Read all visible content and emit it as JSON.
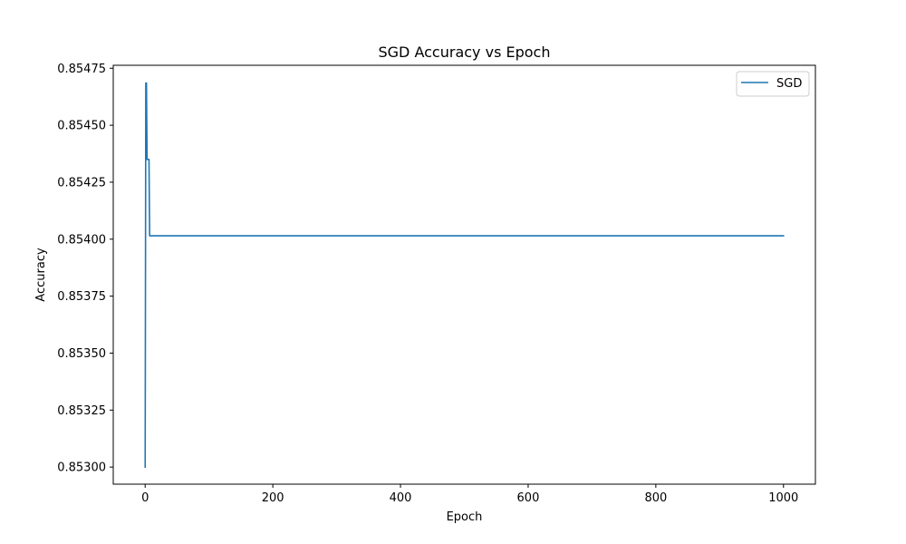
{
  "chart_data": {
    "type": "line",
    "title": "SGD Accuracy vs Epoch",
    "xlabel": "Epoch",
    "ylabel": "Accuracy",
    "xlim": [
      -50,
      1050
    ],
    "ylim": [
      0.852925,
      0.854763
    ],
    "xticks": [
      0,
      200,
      400,
      600,
      800,
      1000
    ],
    "yticks": [
      0.853,
      0.85325,
      0.8535,
      0.85375,
      0.854,
      0.85425,
      0.8545,
      0.85475
    ],
    "xtick_labels": [
      "0",
      "200",
      "400",
      "600",
      "800",
      "1000"
    ],
    "ytick_labels": [
      "0.85300",
      "0.85325",
      "0.85350",
      "0.85375",
      "0.85400",
      "0.85425",
      "0.85450",
      "0.85475"
    ],
    "grid": false,
    "legend_position": "top-right",
    "series": [
      {
        "name": "SGD",
        "color": "#1f77b4",
        "x": [
          0,
          1,
          2,
          3,
          4,
          5,
          6,
          7,
          1000
        ],
        "y": [
          0.853,
          0.854685,
          0.854685,
          0.85435,
          0.85435,
          0.85435,
          0.85435,
          0.854015,
          0.854015
        ]
      }
    ]
  }
}
